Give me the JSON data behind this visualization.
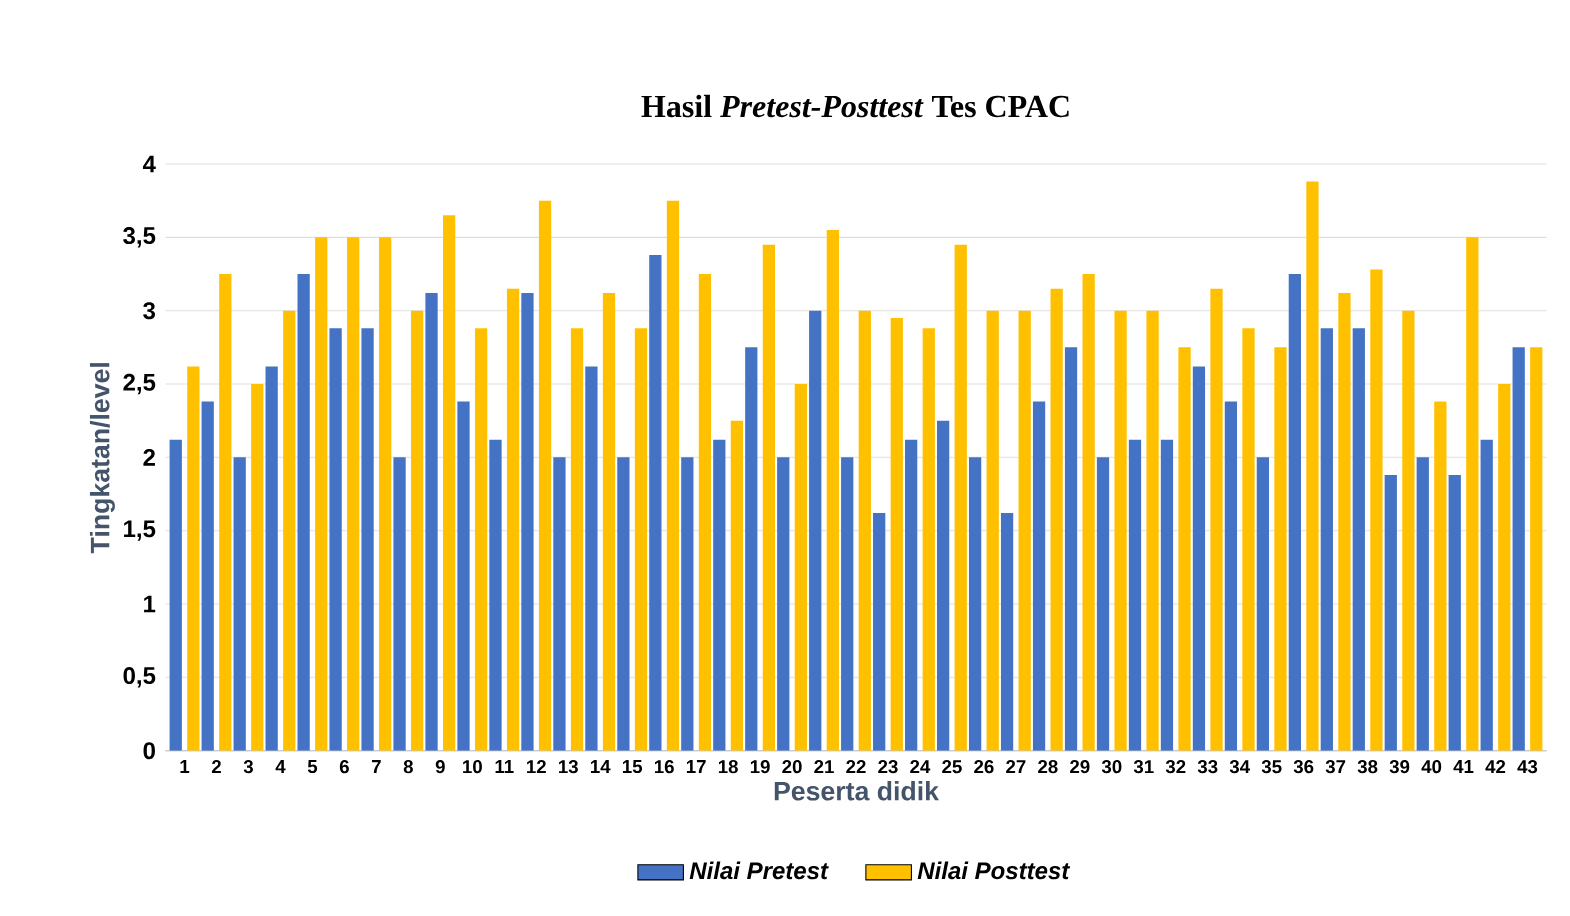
{
  "chart_data": {
    "type": "bar",
    "title": "Hasil *Pretest-Posttest* Tes CPAC",
    "xlabel": "Peserta didik",
    "ylabel": "Tingkatan/level",
    "categories": [
      "1",
      "2",
      "3",
      "4",
      "5",
      "6",
      "7",
      "8",
      "9",
      "10",
      "11",
      "12",
      "13",
      "14",
      "15",
      "16",
      "17",
      "18",
      "19",
      "20",
      "21",
      "22",
      "23",
      "24",
      "25",
      "26",
      "27",
      "28",
      "29",
      "30",
      "31",
      "32",
      "33",
      "34",
      "35",
      "36",
      "37",
      "38",
      "39",
      "40",
      "41",
      "42",
      "43"
    ],
    "series": [
      {
        "name": "Nilai Pretest",
        "color": "#4472c4",
        "values": [
          2.12,
          2.38,
          2,
          2.62,
          3.25,
          2.88,
          2.88,
          2,
          3.12,
          2.38,
          2.12,
          3.12,
          2,
          2.62,
          2,
          3.38,
          2,
          2.12,
          2.75,
          2,
          3,
          2,
          1.62,
          2.12,
          2.25,
          2,
          1.62,
          2.38,
          2.75,
          2,
          2.12,
          2.12,
          2.62,
          2.38,
          2,
          3.25,
          2.88,
          2.88,
          1.88,
          2,
          1.88,
          2.12,
          2.75
        ]
      },
      {
        "name": "Nilai Posttest",
        "color": "#ffc000",
        "values": [
          2.62,
          3.25,
          2.5,
          3,
          3.5,
          3.5,
          3.5,
          3,
          3.65,
          2.88,
          3.15,
          3.75,
          2.88,
          3.12,
          2.88,
          3.75,
          3.25,
          2.25,
          3.45,
          2.5,
          3.55,
          3,
          2.95,
          2.88,
          3.45,
          3,
          3,
          3.15,
          3.25,
          3,
          3,
          2.75,
          3.15,
          2.88,
          2.75,
          3.88,
          3.12,
          3.28,
          3,
          2.38,
          3.5,
          2.5,
          2.75
        ]
      }
    ],
    "ylim": [
      0,
      4
    ],
    "yticks": [
      0,
      {
        "value": 0.5,
        "label": "0,5"
      },
      1,
      {
        "value": 1.5,
        "label": "1,5"
      },
      2,
      {
        "value": 2.5,
        "label": "2,5"
      },
      3,
      {
        "value": 3.5,
        "label": "3,5"
      },
      4
    ],
    "grid": "y",
    "legend": "bottom"
  }
}
